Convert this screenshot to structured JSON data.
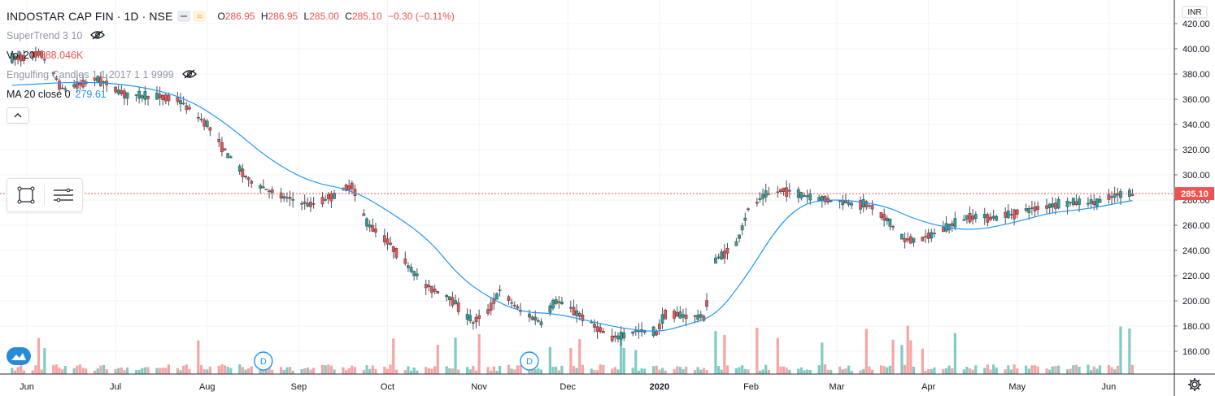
{
  "header": {
    "symbol": "INDOSTAR CAP FIN · 1D · NSE",
    "ohlc": {
      "o_label": "O",
      "o": "286.95",
      "h_label": "H",
      "h": "286.95",
      "l_label": "L",
      "l": "285.00",
      "c_label": "C",
      "c": "285.10",
      "change": "−0.30 (−0.11%)"
    }
  },
  "studies": {
    "supertrend": "SuperTrend 3 10",
    "vol_label": "Vol 20",
    "vol_value": "588.046K",
    "engulfing": "Engulfing Candles 1 1 2017 1 1 9999",
    "ma_label": "MA 20 close 0",
    "ma_value": "279.61"
  },
  "price_axis": {
    "currency": "INR",
    "last_price_label": "285.10"
  },
  "time_axis_labels": [
    "Jun",
    "Jul",
    "Aug",
    "Sep",
    "Oct",
    "Nov",
    "Dec",
    "2020",
    "Feb",
    "Mar",
    "Apr",
    "May",
    "Jun"
  ],
  "event_markers": [
    "D",
    "D"
  ],
  "colors": {
    "up": "#26a69a",
    "down": "#ef5350",
    "ma": "#2196f3",
    "last_line": "#ef5350"
  },
  "chart_data": {
    "type": "candlestick",
    "title": "INDOSTAR CAP FIN · 1D · NSE",
    "ylim": [
      140,
      430
    ],
    "y_ticks": [
      160,
      180,
      200,
      220,
      240,
      260,
      280,
      300,
      320,
      340,
      360,
      380,
      400,
      420
    ],
    "last_price": 285.1,
    "ma_series": {
      "name": "MA 20 close 0",
      "points": [
        [
          "2019-05-27",
          371
        ],
        [
          "2019-06-20",
          374
        ],
        [
          "2019-07-08",
          371
        ],
        [
          "2019-07-25",
          361
        ],
        [
          "2019-08-08",
          340
        ],
        [
          "2019-08-22",
          312
        ],
        [
          "2019-09-05",
          294
        ],
        [
          "2019-09-19",
          288
        ],
        [
          "2019-10-01",
          272
        ],
        [
          "2019-10-15",
          249
        ],
        [
          "2019-10-25",
          220
        ],
        [
          "2019-11-04",
          203
        ],
        [
          "2019-11-15",
          191
        ],
        [
          "2019-11-27",
          190
        ],
        [
          "2019-12-10",
          183
        ],
        [
          "2019-12-20",
          178
        ],
        [
          "2020-01-01",
          175
        ],
        [
          "2020-01-10",
          181
        ],
        [
          "2020-01-20",
          188
        ],
        [
          "2020-01-30",
          218
        ],
        [
          "2020-02-10",
          259
        ],
        [
          "2020-02-18",
          276
        ],
        [
          "2020-02-25",
          280
        ],
        [
          "2020-03-05",
          280
        ],
        [
          "2020-03-18",
          275
        ],
        [
          "2020-03-27",
          265
        ],
        [
          "2020-04-07",
          258
        ],
        [
          "2020-04-17",
          256
        ],
        [
          "2020-04-30",
          262
        ],
        [
          "2020-05-12",
          270
        ],
        [
          "2020-05-25",
          273
        ],
        [
          "2020-06-05",
          278
        ],
        [
          "2020-06-09",
          279.61
        ]
      ]
    },
    "price_path": [
      [
        "2019-05-27",
        392
      ],
      [
        "2019-06-06",
        396
      ],
      [
        "2019-06-13",
        368
      ],
      [
        "2019-06-25",
        376
      ],
      [
        "2019-07-05",
        363
      ],
      [
        "2019-07-15",
        362
      ],
      [
        "2019-07-22",
        360
      ],
      [
        "2019-08-01",
        340
      ],
      [
        "2019-08-08",
        316
      ],
      [
        "2019-08-15",
        296
      ],
      [
        "2019-08-26",
        283
      ],
      [
        "2019-09-05",
        276
      ],
      [
        "2019-09-13",
        284
      ],
      [
        "2019-09-19",
        292
      ],
      [
        "2019-09-24",
        262
      ],
      [
        "2019-09-30",
        250
      ],
      [
        "2019-10-08",
        228
      ],
      [
        "2019-10-14",
        212
      ],
      [
        "2019-10-22",
        203
      ],
      [
        "2019-10-30",
        183
      ],
      [
        "2019-11-04",
        192
      ],
      [
        "2019-11-08",
        208
      ],
      [
        "2019-11-15",
        192
      ],
      [
        "2019-11-22",
        183
      ],
      [
        "2019-11-27",
        200
      ],
      [
        "2019-12-02",
        194
      ],
      [
        "2019-12-09",
        182
      ],
      [
        "2019-12-16",
        170
      ],
      [
        "2019-12-24",
        176
      ],
      [
        "2019-12-31",
        175
      ],
      [
        "2020-01-03",
        190
      ],
      [
        "2020-01-10",
        188
      ],
      [
        "2020-01-16",
        187
      ],
      [
        "2020-01-20",
        232
      ],
      [
        "2020-01-27",
        245
      ],
      [
        "2020-01-31",
        272
      ],
      [
        "2020-02-06",
        284
      ],
      [
        "2020-02-12",
        288
      ],
      [
        "2020-02-18",
        284
      ],
      [
        "2020-02-25",
        281
      ],
      [
        "2020-03-05",
        278
      ],
      [
        "2020-03-12",
        276
      ],
      [
        "2020-03-19",
        262
      ],
      [
        "2020-03-24",
        248
      ],
      [
        "2020-03-31",
        250
      ],
      [
        "2020-04-07",
        258
      ],
      [
        "2020-04-15",
        267
      ],
      [
        "2020-04-24",
        266
      ],
      [
        "2020-05-04",
        272
      ],
      [
        "2020-05-13",
        276
      ],
      [
        "2020-05-20",
        278
      ],
      [
        "2020-05-28",
        278
      ],
      [
        "2020-06-04",
        284
      ],
      [
        "2020-06-09",
        285.1
      ]
    ],
    "volume": {
      "peak_dates": [
        "2019-11-01",
        "2020-01-20",
        "2020-01-23",
        "2020-02-03",
        "2020-03-11",
        "2020-03-25",
        "2020-04-10",
        "2020-06-05",
        "2020-06-08"
      ]
    }
  }
}
